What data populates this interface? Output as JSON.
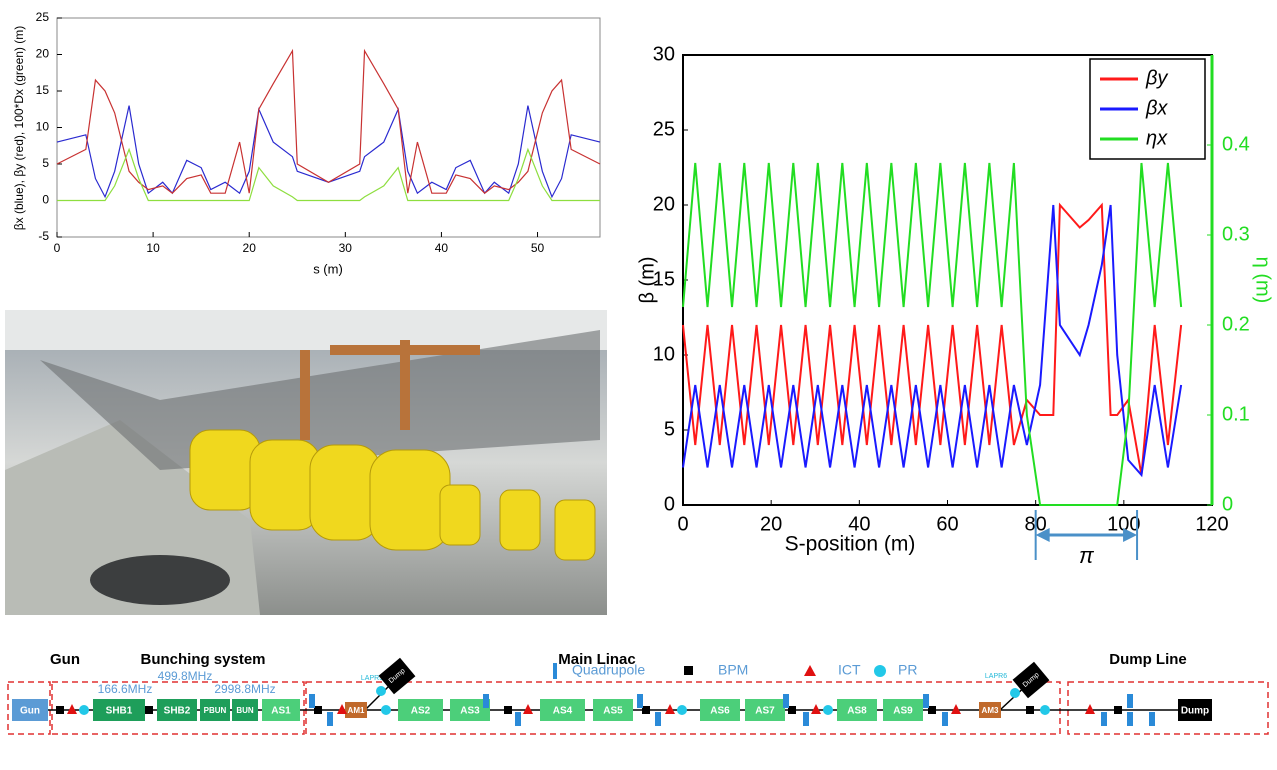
{
  "chart_data": [
    {
      "type": "line",
      "xlabel": "s (m)",
      "ylabel": "βx (blue), βy (red), 100*Dx (green) (m)",
      "x": [
        0,
        3,
        4,
        5,
        6,
        7.5,
        8.5,
        9.5,
        11,
        12,
        13.5,
        15,
        16,
        17.5,
        19,
        20,
        21,
        22.5,
        24.5,
        25,
        28.25,
        31.5,
        32,
        34,
        35.5,
        36.5,
        37.5,
        39,
        40.5,
        41.5,
        43,
        44.5,
        45.5,
        47,
        48,
        49,
        50.5,
        51.5,
        52.5,
        53.5,
        56.5
      ],
      "series": [
        {
          "color": "#2a2ad0",
          "values": [
            8,
            9,
            3,
            0.5,
            4,
            13,
            5,
            1,
            2.5,
            1,
            5.5,
            4.5,
            1.5,
            2.5,
            1,
            4,
            12.5,
            8,
            6,
            4,
            2.5,
            4,
            6,
            8,
            12.5,
            4,
            1,
            2.5,
            1.5,
            4.5,
            5.5,
            1,
            2.5,
            1,
            5,
            13,
            4,
            0.5,
            3,
            9,
            8
          ]
        },
        {
          "color": "#c83232",
          "values": [
            5,
            7,
            16.5,
            15,
            12,
            4,
            2.5,
            1.5,
            2,
            1,
            3,
            3.5,
            1,
            1,
            8,
            1,
            12.5,
            16,
            20.5,
            5,
            2.5,
            5,
            20.5,
            16,
            12.5,
            1,
            8,
            1,
            1,
            3.5,
            3,
            1,
            2,
            1.5,
            2.5,
            4,
            12,
            15,
            16.5,
            7,
            5
          ]
        },
        {
          "color": "#8ede3f",
          "values": [
            0,
            0,
            0,
            0,
            2,
            7,
            3,
            0,
            0,
            0,
            0,
            0,
            0,
            0,
            0,
            0,
            4.5,
            2,
            0.5,
            0,
            0,
            0,
            0.5,
            2,
            4.5,
            0,
            0,
            0,
            0,
            0,
            0,
            0,
            0,
            0,
            3,
            7,
            2,
            0,
            0,
            0,
            0
          ]
        }
      ],
      "xlim": [
        0,
        56.5
      ],
      "ylim": [
        -5,
        25
      ],
      "xticks": [
        0,
        10,
        20,
        30,
        40,
        50
      ],
      "yticks": [
        -5,
        0,
        5,
        10,
        15,
        20,
        25
      ]
    },
    {
      "type": "line",
      "xlabel": "S-position (m)",
      "ylabel": "β (m)",
      "y2label": "η (m)",
      "x": [
        0,
        2.78,
        5.56,
        8.34,
        11.12,
        13.9,
        16.68,
        19.46,
        22.24,
        25.02,
        27.8,
        30.58,
        33.36,
        36.14,
        38.92,
        41.7,
        44.48,
        47.26,
        50.04,
        52.82,
        55.6,
        58.38,
        61.16,
        63.94,
        66.72,
        69.5,
        72.28,
        75.06,
        78,
        81,
        84,
        85.5,
        90,
        92,
        95,
        97,
        98.5,
        101,
        104,
        107,
        110,
        113
      ],
      "series": [
        {
          "name": "βy",
          "color": "#ff1a1a",
          "values": [
            12,
            4,
            12,
            4,
            12,
            4,
            12,
            4,
            12,
            4,
            12,
            4,
            12,
            4,
            12,
            4,
            12,
            4,
            12,
            4,
            12,
            4,
            12,
            4,
            12,
            4,
            12,
            4,
            7,
            6,
            6,
            20,
            18.5,
            19,
            20,
            6,
            6,
            7,
            2,
            12,
            4,
            12
          ]
        },
        {
          "name": "βx",
          "color": "#1a1aff",
          "values": [
            2.5,
            8,
            2.5,
            8,
            2.5,
            8,
            2.5,
            8,
            2.5,
            8,
            2.5,
            8,
            2.5,
            8,
            2.5,
            8,
            2.5,
            8,
            2.5,
            8,
            2.5,
            8,
            2.5,
            8,
            2.5,
            8,
            2.5,
            8,
            4,
            8,
            20,
            12,
            10,
            12,
            16,
            20,
            10,
            3,
            2,
            8,
            2.5,
            8
          ]
        },
        {
          "name": "ηx",
          "color": "#22dd22",
          "axis": "y2",
          "values": [
            0.22,
            0.38,
            0.22,
            0.38,
            0.22,
            0.38,
            0.22,
            0.38,
            0.22,
            0.38,
            0.22,
            0.38,
            0.22,
            0.38,
            0.22,
            0.38,
            0.22,
            0.38,
            0.22,
            0.38,
            0.22,
            0.38,
            0.22,
            0.38,
            0.22,
            0.38,
            0.22,
            0.38,
            0.1,
            0,
            0,
            0,
            0,
            0,
            0,
            0,
            0,
            0.1,
            0.38,
            0.22,
            0.38,
            0.22
          ]
        }
      ],
      "xlim": [
        0,
        120
      ],
      "ylim": [
        0,
        30
      ],
      "y2lim": [
        0,
        0.5
      ],
      "xticks": [
        0,
        20,
        40,
        60,
        80,
        100,
        120
      ],
      "yticks": [
        0,
        5,
        10,
        15,
        20,
        25,
        30
      ],
      "y2ticks": [
        0,
        0.1,
        0.2,
        0.3,
        0.4
      ],
      "legend": "upper right",
      "annotation": {
        "text": "π",
        "x": [
          80,
          103
        ]
      }
    }
  ],
  "diagram": {
    "sections": [
      "Gun",
      "Bunching system",
      "Main Linac",
      "Dump Line"
    ],
    "frequencies": [
      "166.6MHz",
      "499.8MHz",
      "2998.8MHz"
    ],
    "legend": [
      "Quadrupole",
      "BPM",
      "ICT",
      "PR"
    ],
    "pr_labels": [
      "LAPR5",
      "LAPR6"
    ],
    "blocks": [
      {
        "label": "Gun",
        "color": "#5b9bd5"
      },
      {
        "label": "SHB1",
        "color": "#1e9e5a"
      },
      {
        "label": "SHB2",
        "color": "#1e9e5a"
      },
      {
        "label": "PBUN",
        "color": "#1e9e5a"
      },
      {
        "label": "BUN",
        "color": "#1e9e5a"
      },
      {
        "label": "AS1",
        "color": "#4ccf7a"
      },
      {
        "label": "AM1",
        "color": "#c0692b"
      },
      {
        "label": "AS2",
        "color": "#4ccf7a"
      },
      {
        "label": "AS3",
        "color": "#4ccf7a"
      },
      {
        "label": "AS4",
        "color": "#4ccf7a"
      },
      {
        "label": "AS5",
        "color": "#4ccf7a"
      },
      {
        "label": "AS6",
        "color": "#4ccf7a"
      },
      {
        "label": "AS7",
        "color": "#4ccf7a"
      },
      {
        "label": "AS8",
        "color": "#4ccf7a"
      },
      {
        "label": "AS9",
        "color": "#4ccf7a"
      },
      {
        "label": "AM3",
        "color": "#c0692b"
      },
      {
        "label": "Dump",
        "color": "#000000"
      },
      {
        "label": "Dump",
        "color": "#000000"
      },
      {
        "label": "Dump",
        "color": "#000000"
      }
    ]
  }
}
